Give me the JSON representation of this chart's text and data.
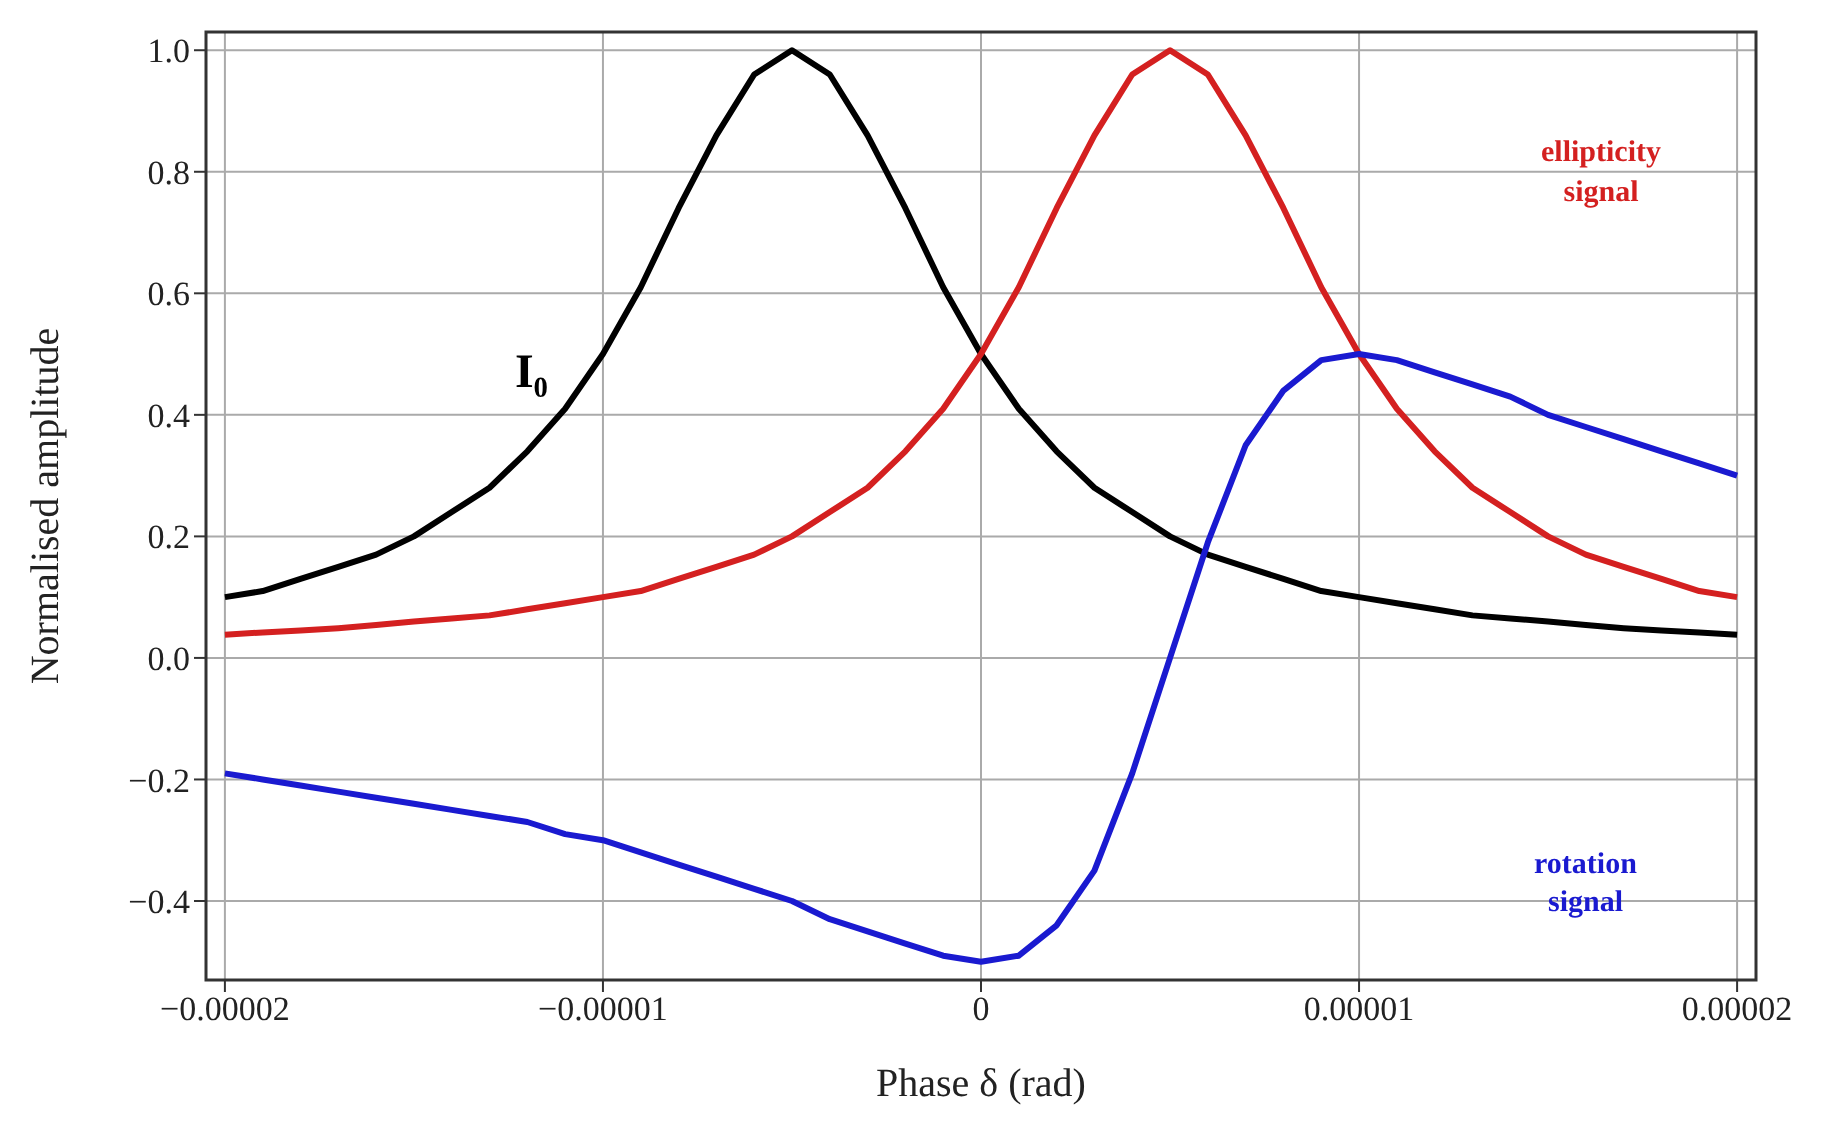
{
  "chart_data": {
    "type": "line",
    "xlabel": "Phase δ (rad)",
    "ylabel": "Normalised amplitude",
    "grid": true,
    "legend": false,
    "x": [
      -2e-05,
      -1.9e-05,
      -1.8e-05,
      -1.7e-05,
      -1.6e-05,
      -1.5e-05,
      -1.4e-05,
      -1.3e-05,
      -1.2e-05,
      -1.1e-05,
      -1e-05,
      -9e-06,
      -8e-06,
      -7e-06,
      -6e-06,
      -5e-06,
      -4e-06,
      -3e-06,
      -2e-06,
      -1e-06,
      0,
      1e-06,
      2e-06,
      3e-06,
      4e-06,
      5e-06,
      6e-06,
      7e-06,
      8e-06,
      9e-06,
      1e-05,
      1.1e-05,
      1.2e-05,
      1.3e-05,
      1.4e-05,
      1.5e-05,
      1.6e-05,
      1.7e-05,
      1.8e-05,
      1.9e-05,
      2e-05
    ],
    "xlim": [
      -2.05e-05,
      2.05e-05
    ],
    "xticks": [
      {
        "value": -2e-05,
        "label": "−0.00002"
      },
      {
        "value": -1e-05,
        "label": "−0.00001"
      },
      0,
      {
        "value": 1e-05,
        "label": "0.00001"
      },
      {
        "value": 2e-05,
        "label": "0.00002"
      }
    ],
    "ylim": [
      -0.53,
      1.03
    ],
    "yticks": [
      {
        "value": -0.4,
        "label": "−0.4"
      },
      {
        "value": -0.2,
        "label": "−0.2"
      },
      {
        "value": 0,
        "label": "0.0"
      },
      0.2,
      0.4,
      0.6,
      0.8,
      {
        "value": 1,
        "label": "1.0"
      }
    ],
    "series": [
      {
        "name": "I₀",
        "color": "#000000",
        "values": [
          0.1,
          0.11,
          0.13,
          0.15,
          0.17,
          0.2,
          0.24,
          0.28,
          0.34,
          0.41,
          0.5,
          0.61,
          0.74,
          0.86,
          0.96,
          1,
          0.96,
          0.86,
          0.74,
          0.61,
          0.5,
          0.41,
          0.34,
          0.28,
          0.24,
          0.2,
          0.17,
          0.15,
          0.13,
          0.11,
          0.1,
          0.09,
          0.08,
          0.07,
          0.065,
          0.06,
          0.054,
          0.049,
          0.045,
          0.042,
          0.038
        ]
      },
      {
        "name": "ellipticity signal",
        "color": "#d42020",
        "values": [
          0.038,
          0.042,
          0.045,
          0.049,
          0.054,
          0.06,
          0.065,
          0.07,
          0.08,
          0.09,
          0.1,
          0.11,
          0.13,
          0.15,
          0.17,
          0.2,
          0.24,
          0.28,
          0.34,
          0.41,
          0.5,
          0.61,
          0.74,
          0.86,
          0.96,
          1,
          0.96,
          0.86,
          0.74,
          0.61,
          0.5,
          0.41,
          0.34,
          0.28,
          0.24,
          0.2,
          0.17,
          0.15,
          0.13,
          0.11,
          0.1
        ]
      },
      {
        "name": "rotation signal",
        "color": "#1a1ad0",
        "values": [
          -0.19,
          -0.2,
          -0.21,
          -0.22,
          -0.23,
          -0.24,
          -0.25,
          -0.26,
          -0.27,
          -0.29,
          -0.3,
          -0.32,
          -0.34,
          -0.36,
          -0.38,
          -0.4,
          -0.43,
          -0.45,
          -0.47,
          -0.49,
          -0.5,
          -0.49,
          -0.44,
          -0.35,
          -0.19,
          0,
          0.19,
          0.35,
          0.44,
          0.49,
          0.5,
          0.49,
          0.47,
          0.45,
          0.43,
          0.4,
          0.38,
          0.36,
          0.34,
          0.32,
          0.3
        ]
      }
    ]
  }
}
